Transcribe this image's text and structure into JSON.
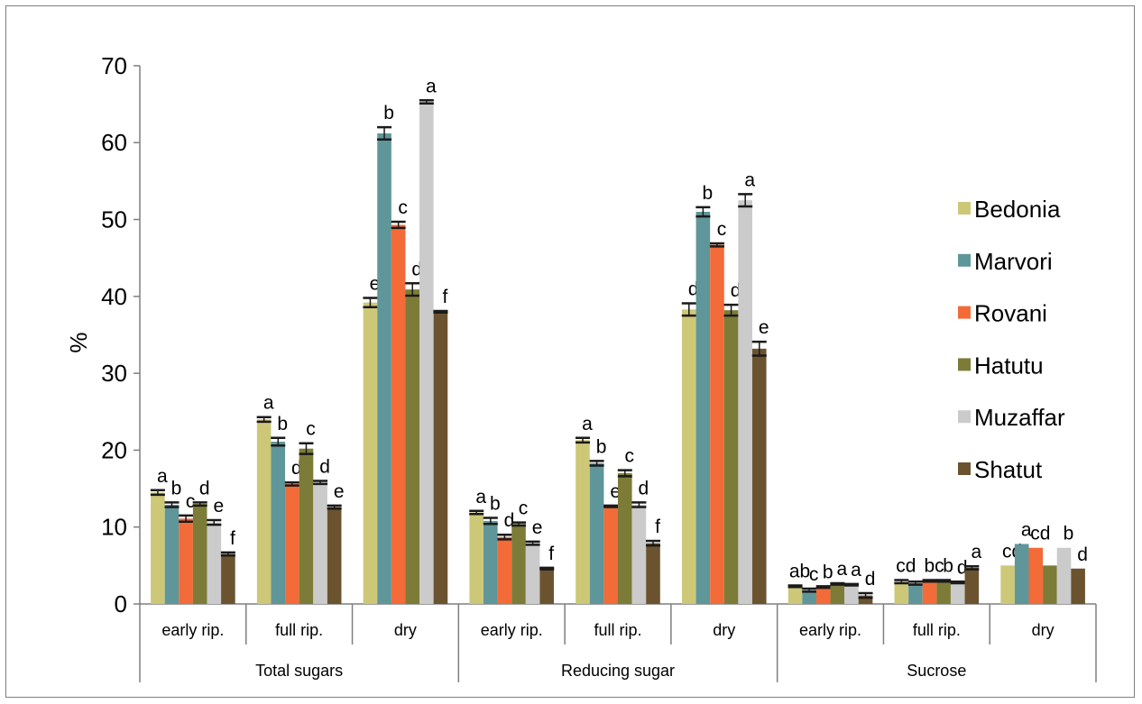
{
  "chart_data": {
    "type": "bar",
    "ylabel": "%",
    "ylim": [
      0,
      70
    ],
    "yticks": [
      "0",
      "10",
      "20",
      "30",
      "40",
      "50",
      "60",
      "70"
    ],
    "groups": [
      "Total sugars",
      "Reducing sugar",
      "Sucrose"
    ],
    "stages": [
      "early rip.",
      "full rip.",
      "dry"
    ],
    "legend_position": "right",
    "series": [
      {
        "name": "Bedonia",
        "color": "#cdc878"
      },
      {
        "name": "Marvori",
        "color": "#5f9699"
      },
      {
        "name": "Rovani",
        "color": "#f26b38"
      },
      {
        "name": "Hatutu",
        "color": "#7c7c38"
      },
      {
        "name": "Muzaffar",
        "color": "#cbcbcb"
      },
      {
        "name": "Shatut",
        "color": "#6b5330"
      }
    ],
    "categories": [
      {
        "group": "Total sugars",
        "stage": "early rip.",
        "values": [
          14.5,
          12.9,
          11.1,
          13,
          10.6,
          6.5
        ],
        "errors": [
          0.3,
          0.3,
          0.4,
          0.2,
          0.3,
          0.2
        ],
        "letters": [
          "a",
          "b",
          "c",
          "d",
          "e",
          "f"
        ]
      },
      {
        "group": "Total sugars",
        "stage": "full rip.",
        "values": [
          24,
          21.1,
          15.6,
          20.2,
          15.8,
          12.6
        ],
        "errors": [
          0.3,
          0.5,
          0.2,
          0.7,
          0.2,
          0.2
        ],
        "letters": [
          "a",
          "b",
          "d",
          "c",
          "d",
          "e"
        ]
      },
      {
        "group": "Total sugars",
        "stage": "dry",
        "values": [
          39.2,
          61.2,
          49.3,
          40.9,
          65.3,
          38
        ],
        "errors": [
          0.6,
          0.8,
          0.4,
          0.8,
          0.2,
          0.1
        ],
        "letters": [
          "e",
          "b",
          "c",
          "d",
          "a",
          "f"
        ]
      },
      {
        "group": "Reducing sugar",
        "stage": "early rip.",
        "values": [
          11.9,
          10.8,
          8.7,
          10.4,
          7.9,
          4.6
        ],
        "errors": [
          0.2,
          0.4,
          0.3,
          0.2,
          0.2,
          0.1
        ],
        "letters": [
          "a",
          "b",
          "d",
          "c",
          "e",
          "f"
        ]
      },
      {
        "group": "Reducing sugar",
        "stage": "full rip.",
        "values": [
          21.3,
          18.3,
          12.7,
          17,
          12.9,
          7.9
        ],
        "errors": [
          0.3,
          0.3,
          0.1,
          0.4,
          0.3,
          0.3
        ],
        "letters": [
          "a",
          "b",
          "e",
          "c",
          "d",
          "f"
        ]
      },
      {
        "group": "Reducing sugar",
        "stage": "dry",
        "values": [
          38.3,
          51,
          46.7,
          38.2,
          52.5,
          33.2
        ],
        "errors": [
          0.8,
          0.6,
          0.2,
          0.7,
          0.8,
          0.9
        ],
        "letters": [
          "d",
          "b",
          "c",
          "d",
          "a",
          "e"
        ]
      },
      {
        "group": "Sucrose",
        "stage": "early rip.",
        "values": [
          2.3,
          1.8,
          2.2,
          2.6,
          2.5,
          1.1
        ],
        "errors": [
          0.1,
          0.2,
          0.1,
          0.1,
          0.1,
          0.3
        ],
        "letters": [
          "ab",
          "c",
          "b",
          "a",
          "a",
          "d"
        ]
      },
      {
        "group": "Sucrose",
        "stage": "full rip.",
        "values": [
          2.9,
          2.7,
          3,
          3,
          2.8,
          4.7
        ],
        "errors": [
          0.2,
          0.2,
          0.1,
          0.1,
          0.1,
          0.2
        ],
        "letters": [
          "cd",
          "",
          "bc",
          "b",
          "d",
          "a"
        ]
      },
      {
        "group": "Sucrose",
        "stage": "dry",
        "values": [
          5,
          7.8,
          7.3,
          5,
          7.3,
          4.6
        ],
        "errors": [
          0,
          0,
          0,
          0,
          0,
          0
        ],
        "letters": [
          "cd",
          "a",
          "cd",
          "",
          "b",
          "d"
        ]
      }
    ]
  }
}
